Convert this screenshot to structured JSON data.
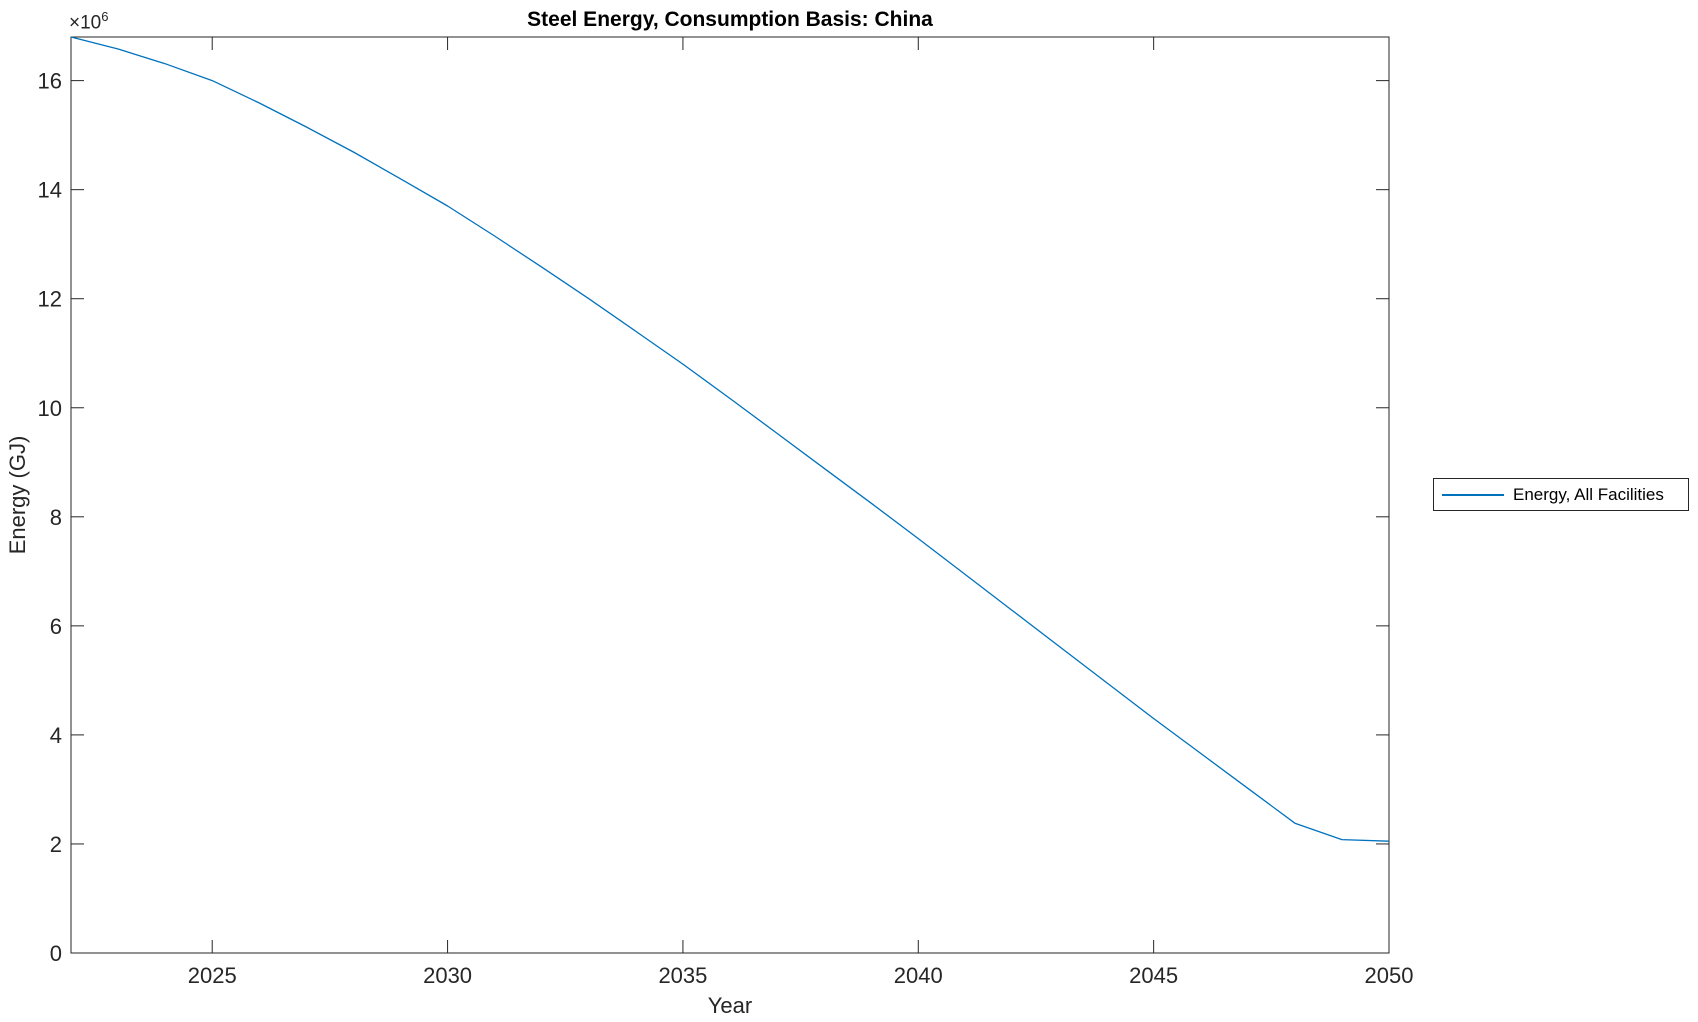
{
  "colors": {
    "line": "#0072BD",
    "axis": "#262626",
    "background": "#ffffff"
  },
  "figure": {
    "y_axis_multiplier_base": "×10",
    "y_axis_multiplier_exponent": "6"
  },
  "legend": {
    "position": "right-outside",
    "entries": [
      {
        "label": "Energy, All Facilities",
        "color": "#0072BD"
      }
    ]
  },
  "chart_data": {
    "type": "line",
    "title": "Steel Energy, Consumption Basis: China",
    "xlabel": "Year",
    "ylabel": "Energy (GJ)",
    "y_multiplier": 1000000,
    "y_multiplier_label": "×10^6",
    "grid": false,
    "xlim": [
      2022,
      2050
    ],
    "ylim": [
      0,
      16800000
    ],
    "xticks": [
      2025,
      2030,
      2035,
      2040,
      2045,
      2050
    ],
    "ytick_values_gj": [
      0,
      2000000,
      4000000,
      6000000,
      8000000,
      10000000,
      12000000,
      14000000,
      16000000
    ],
    "ytick_labels": [
      "0",
      "2",
      "4",
      "6",
      "8",
      "10",
      "12",
      "14",
      "16"
    ],
    "series": [
      {
        "name": "Energy, All Facilities",
        "color": "#0072BD",
        "x": [
          2022,
          2023,
          2024,
          2025,
          2026,
          2027,
          2028,
          2029,
          2030,
          2031,
          2032,
          2033,
          2034,
          2035,
          2036,
          2037,
          2038,
          2039,
          2040,
          2041,
          2042,
          2043,
          2044,
          2045,
          2046,
          2047,
          2048,
          2049,
          2050
        ],
        "y_gj": [
          16800000,
          16580000,
          16310000,
          16000000,
          15590000,
          15150000,
          14690000,
          14200000,
          13700000,
          13150000,
          12580000,
          12000000,
          11400000,
          10800000,
          10170000,
          9530000,
          8890000,
          8250000,
          7600000,
          6940000,
          6280000,
          5620000,
          4960000,
          4300000,
          3660000,
          3020000,
          2380000,
          2080000,
          2050000
        ]
      }
    ]
  }
}
